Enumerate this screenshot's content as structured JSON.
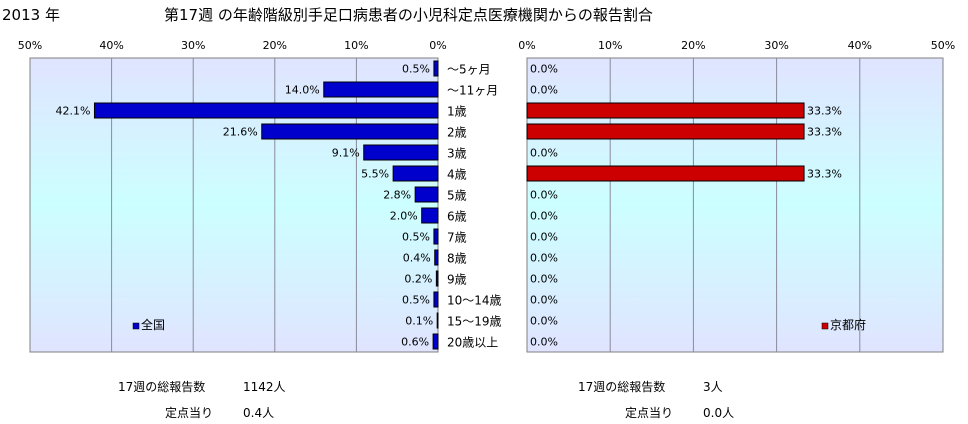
{
  "header": {
    "year": "2013 年",
    "title": "第17週 の年齢階級別手足口病患者の小児科定点医療機関からの報告割合"
  },
  "colors": {
    "national_bar": "#0000CC",
    "kyoto_bar": "#CC0000",
    "plot_gradient_top": "#E0E4FF",
    "plot_gradient_mid": "#CCFFFF",
    "plot_gradient_bottom": "#E0E4FF"
  },
  "chart_data": [
    {
      "type": "bar",
      "orientation": "horizontal",
      "direction": "right-to-left",
      "categories": [
        "〜5ヶ月",
        "〜11ヶ月",
        "1歳",
        "2歳",
        "3歳",
        "4歳",
        "5歳",
        "6歳",
        "7歳",
        "8歳",
        "9歳",
        "10〜14歳",
        "15〜19歳",
        "20歳以上"
      ],
      "series": [
        {
          "name": "全国",
          "values": [
            0.5,
            14.0,
            42.1,
            21.6,
            9.1,
            5.5,
            2.8,
            2.0,
            0.5,
            0.4,
            0.2,
            0.5,
            0.1,
            0.6
          ],
          "labels": [
            "0.5%",
            "14.0%",
            "42.1%",
            "21.6%",
            "9.1%",
            "5.5%",
            "2.8%",
            "2.0%",
            "0.5%",
            "0.4%",
            "0.2%",
            "0.5%",
            "0.1%",
            "0.6%"
          ]
        }
      ],
      "xlim": [
        0,
        50
      ],
      "ticks": [
        "50%",
        "40%",
        "30%",
        "20%",
        "10%",
        "0%"
      ],
      "grid": true,
      "legend": "bottom-left"
    },
    {
      "type": "bar",
      "orientation": "horizontal",
      "direction": "left-to-right",
      "categories": [
        "〜5ヶ月",
        "〜11ヶ月",
        "1歳",
        "2歳",
        "3歳",
        "4歳",
        "5歳",
        "6歳",
        "7歳",
        "8歳",
        "9歳",
        "10〜14歳",
        "15〜19歳",
        "20歳以上"
      ],
      "series": [
        {
          "name": "京都府",
          "values": [
            0.0,
            0.0,
            33.3,
            33.3,
            0.0,
            33.3,
            0.0,
            0.0,
            0.0,
            0.0,
            0.0,
            0.0,
            0.0,
            0.0
          ],
          "labels": [
            "0.0%",
            "0.0%",
            "33.3%",
            "33.3%",
            "0.0%",
            "33.3%",
            "0.0%",
            "0.0%",
            "0.0%",
            "0.0%",
            "0.0%",
            "0.0%",
            "0.0%",
            "0.0%"
          ]
        }
      ],
      "xlim": [
        0,
        50
      ],
      "ticks": [
        "0%",
        "10%",
        "20%",
        "30%",
        "40%",
        "50%"
      ],
      "grid": true,
      "legend": "bottom-right"
    }
  ],
  "stats": {
    "national": {
      "total_label": "17週の総報告数",
      "total_value": "1142人",
      "per_label": "定点当り",
      "per_value": "0.4人"
    },
    "kyoto": {
      "total_label": "17週の総報告数",
      "total_value": "3人",
      "per_label": "定点当り",
      "per_value": "0.0人"
    }
  }
}
